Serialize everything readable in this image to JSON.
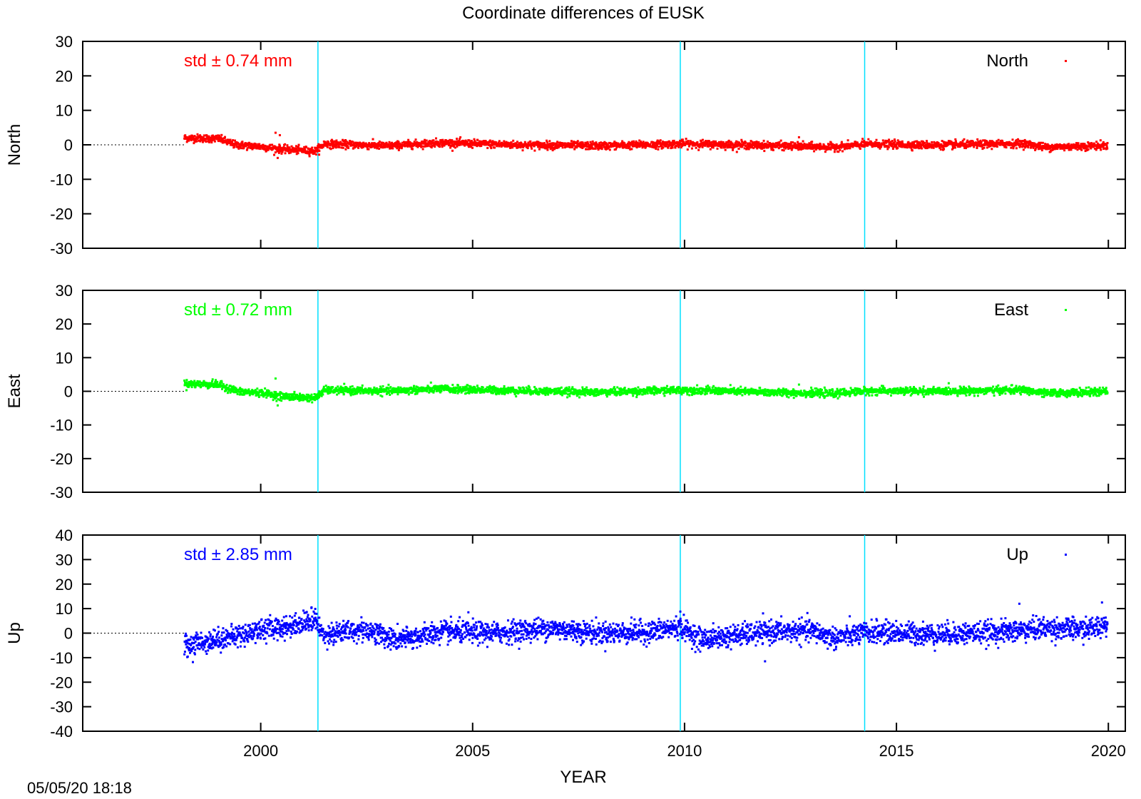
{
  "chart_data": {
    "type": "scatter",
    "title": "Coordinate differences of EUSK",
    "xlabel": "YEAR",
    "xlim": [
      1995.8,
      2020.4
    ],
    "x_ticks": [
      2000,
      2005,
      2010,
      2015,
      2020
    ],
    "x_tick_labels": [
      "2000",
      "2005",
      "2010",
      "2015",
      "2020"
    ],
    "vertical_markers": [
      2001.35,
      2009.9,
      2014.25
    ],
    "timestamp": "05/05/20 18:18",
    "series_start": 1998.2,
    "series_end": 2019.98,
    "panels": [
      {
        "name": "North",
        "ylabel": "North",
        "ylim": [
          -30,
          30
        ],
        "y_ticks": [
          30,
          20,
          10,
          0,
          -10,
          -20,
          -30
        ],
        "y_tick_labels": [
          "30",
          "20",
          "10",
          "0",
          "-10",
          "-20",
          "-30"
        ],
        "color": "#ff0000",
        "std_label": "std ± 0.74 mm",
        "legend": "North",
        "noise": 0.55,
        "trend_points": [
          [
            1998.2,
            2.0
          ],
          [
            1999.0,
            1.8
          ],
          [
            1999.4,
            0.0
          ],
          [
            2000.0,
            -0.5
          ],
          [
            2000.5,
            -1.3
          ],
          [
            2001.3,
            -1.8
          ],
          [
            2001.5,
            0.3
          ],
          [
            2003.0,
            -0.3
          ],
          [
            2004.2,
            0.6
          ],
          [
            2006.0,
            0.0
          ],
          [
            2008.0,
            -0.3
          ],
          [
            2010.0,
            0.3
          ],
          [
            2012.0,
            -0.2
          ],
          [
            2013.5,
            -0.7
          ],
          [
            2014.3,
            0.2
          ],
          [
            2016.0,
            -0.1
          ],
          [
            2018.0,
            0.4
          ],
          [
            2018.5,
            -0.7
          ],
          [
            2020.0,
            -0.2
          ]
        ],
        "spikes": [
          [
            2000.35,
            3.5
          ],
          [
            2000.4,
            -3.8
          ],
          [
            2000.45,
            2.8
          ],
          [
            2012.7,
            2.2
          ]
        ]
      },
      {
        "name": "East",
        "ylabel": "East",
        "ylim": [
          -30,
          30
        ],
        "y_ticks": [
          30,
          20,
          10,
          0,
          -10,
          -20,
          -30
        ],
        "y_tick_labels": [
          "30",
          "20",
          "10",
          "0",
          "-10",
          "-20",
          "-30"
        ],
        "color": "#00ff00",
        "std_label": "std ± 0.72 mm",
        "legend": "East",
        "noise": 0.55,
        "trend_points": [
          [
            1998.2,
            2.2
          ],
          [
            1999.0,
            2.0
          ],
          [
            1999.5,
            -0.2
          ],
          [
            2000.0,
            -0.4
          ],
          [
            2000.5,
            -1.5
          ],
          [
            2001.3,
            -2.0
          ],
          [
            2001.5,
            0.3
          ],
          [
            2003.0,
            0.1
          ],
          [
            2004.2,
            0.7
          ],
          [
            2006.0,
            0.2
          ],
          [
            2008.0,
            -0.3
          ],
          [
            2010.0,
            0.4
          ],
          [
            2012.0,
            -0.3
          ],
          [
            2013.5,
            -0.7
          ],
          [
            2014.3,
            0.1
          ],
          [
            2016.0,
            0.0
          ],
          [
            2018.0,
            0.4
          ],
          [
            2018.5,
            -0.6
          ],
          [
            2020.0,
            -0.1
          ]
        ],
        "spikes": [
          [
            2000.35,
            3.8
          ],
          [
            2000.4,
            -4.2
          ],
          [
            2012.7,
            2.0
          ]
        ]
      },
      {
        "name": "Up",
        "ylabel": "Up",
        "ylim": [
          -40,
          40
        ],
        "y_ticks": [
          40,
          30,
          20,
          10,
          0,
          -10,
          -20,
          -30,
          -40
        ],
        "y_tick_labels": [
          "40",
          "30",
          "20",
          "10",
          "0",
          "-10",
          "-20",
          "-30",
          "-40"
        ],
        "color": "#0000ff",
        "std_label": "std ± 2.85 mm",
        "legend": "Up",
        "noise": 2.2,
        "trend_points": [
          [
            1998.2,
            -5.0
          ],
          [
            1999.0,
            -2.5
          ],
          [
            1999.6,
            -0.5
          ],
          [
            2000.0,
            1.5
          ],
          [
            2000.6,
            2.5
          ],
          [
            2001.3,
            5.5
          ],
          [
            2001.45,
            -0.5
          ],
          [
            2002.5,
            1.5
          ],
          [
            2003.2,
            -3.0
          ],
          [
            2004.3,
            0.5
          ],
          [
            2005.5,
            0.0
          ],
          [
            2006.8,
            2.0
          ],
          [
            2008.0,
            0.0
          ],
          [
            2009.2,
            0.5
          ],
          [
            2009.9,
            2.5
          ],
          [
            2010.4,
            -2.5
          ],
          [
            2012.0,
            0.5
          ],
          [
            2013.0,
            1.0
          ],
          [
            2013.5,
            -2.0
          ],
          [
            2014.5,
            0.5
          ],
          [
            2016.0,
            -0.5
          ],
          [
            2017.5,
            0.5
          ],
          [
            2018.5,
            2.0
          ],
          [
            2019.5,
            1.5
          ],
          [
            2020.0,
            4.0
          ]
        ],
        "spikes": [
          [
            2001.2,
            10.5
          ],
          [
            2004.9,
            8.5
          ],
          [
            2009.9,
            8.8
          ],
          [
            2011.9,
            -11.5
          ],
          [
            2017.9,
            12.0
          ],
          [
            2019.85,
            12.5
          ],
          [
            1998.4,
            -11.8
          ]
        ]
      }
    ]
  }
}
